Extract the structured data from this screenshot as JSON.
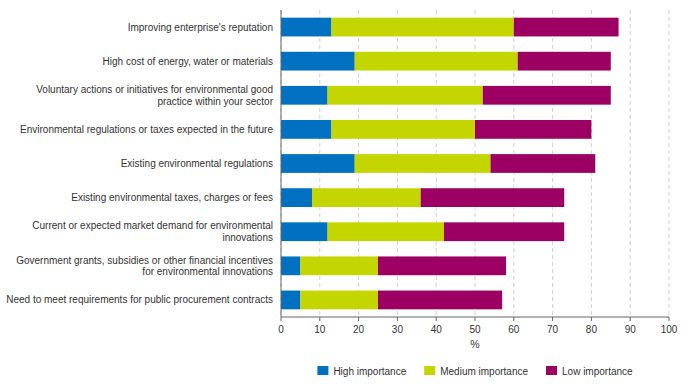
{
  "chart_data": {
    "type": "bar",
    "orientation": "horizontal",
    "stacked": true,
    "categories": [
      "Improving  enterprise's reputation",
      "High cost of energy, water or materials",
      "Voluntary actions or initiatives for environmental good\npractice within your sector",
      "Environmental regulations or taxes expected in the future",
      "Existing environmental regulations",
      "Existing environmental taxes, charges or fees",
      "Current or expected market demand for environmental\ninnovations",
      "Government grants, subsidies or other financial incentives\nfor environmental innovations",
      "Need to meet requirements for public procurement contracts"
    ],
    "series": [
      {
        "name": "High importance",
        "color": "#0070C0",
        "values": [
          13,
          19,
          12,
          13,
          19,
          8,
          12,
          5,
          5
        ]
      },
      {
        "name": "Medium importance",
        "color": "#C4D600",
        "values": [
          47,
          42,
          40,
          37,
          35,
          28,
          30,
          20,
          20
        ]
      },
      {
        "name": "Low importance",
        "color": "#9B0062",
        "values": [
          27,
          24,
          33,
          30,
          27,
          37,
          31,
          33,
          32
        ]
      }
    ],
    "xlabel": "%",
    "xlim": [
      0,
      100
    ],
    "xticks": [
      0,
      10,
      20,
      30,
      40,
      50,
      60,
      70,
      80,
      90,
      100
    ],
    "grid": true,
    "legend": "bottom"
  }
}
